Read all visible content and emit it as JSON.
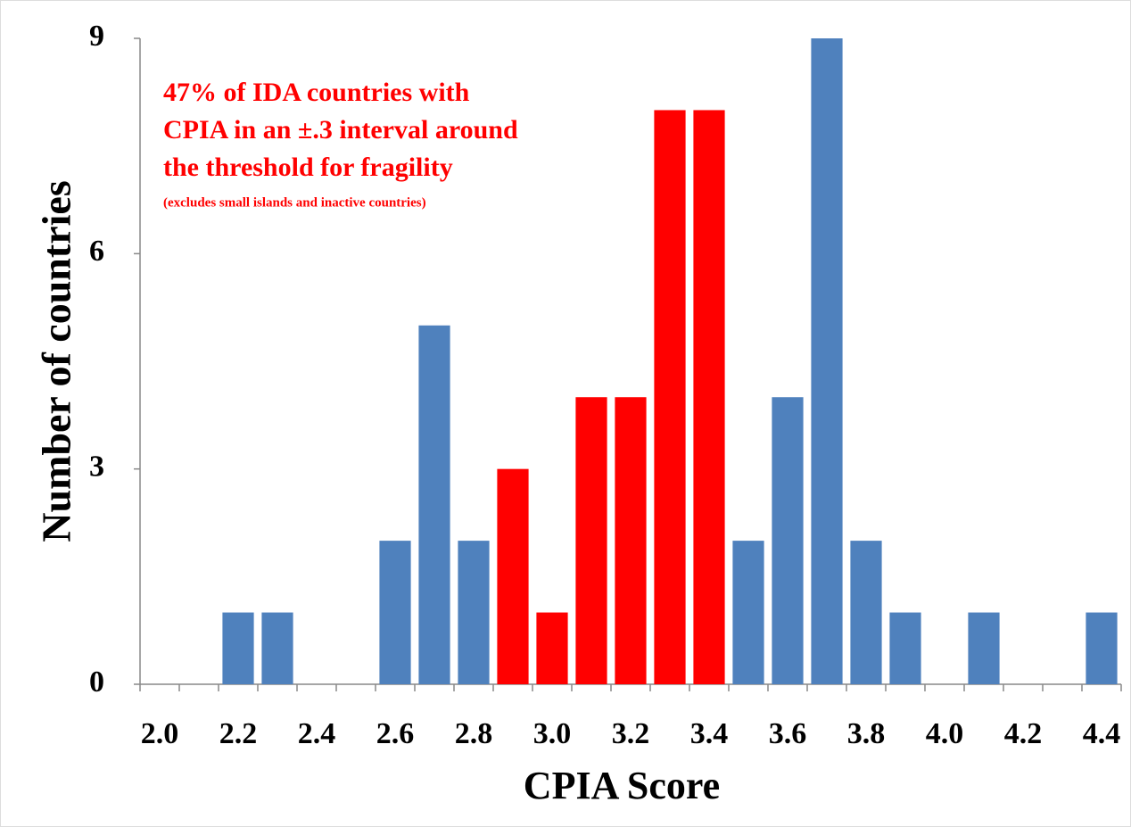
{
  "chart_data": {
    "type": "bar",
    "x_label": "CPIA Score",
    "y_label": "Number of countries",
    "annotation": [
      "47% of IDA countries with",
      "CPIA in an ±.3 interval around",
      "the threshold for fragility",
      "(excludes small islands and inactive countries)"
    ],
    "annotation_color": "#ff0000",
    "categories": [
      "2.0",
      null,
      "2.2",
      null,
      "2.4",
      null,
      "2.6",
      null,
      "2.8",
      null,
      "3.0",
      null,
      "3.2",
      null,
      "3.4",
      null,
      "3.6",
      null,
      "3.8",
      null,
      "4.0",
      null,
      "4.2",
      null,
      "4.4"
    ],
    "values": [
      0,
      0,
      1,
      1,
      0,
      0,
      2,
      5,
      2,
      3,
      1,
      4,
      4,
      8,
      8,
      2,
      4,
      9,
      2,
      1,
      0,
      1,
      0,
      0,
      1
    ],
    "colors": [
      "#4f81bd",
      "#4f81bd",
      "#4f81bd",
      "#4f81bd",
      "#4f81bd",
      "#4f81bd",
      "#4f81bd",
      "#4f81bd",
      "#4f81bd",
      "#ff0000",
      "#ff0000",
      "#ff0000",
      "#ff0000",
      "#ff0000",
      "#ff0000",
      "#4f81bd",
      "#4f81bd",
      "#4f81bd",
      "#4f81bd",
      "#4f81bd",
      "#4f81bd",
      "#4f81bd",
      "#4f81bd",
      "#4f81bd",
      "#4f81bd"
    ],
    "ylim": [
      0,
      9
    ],
    "yticks": [
      0,
      3,
      6,
      9
    ],
    "grid": false
  }
}
